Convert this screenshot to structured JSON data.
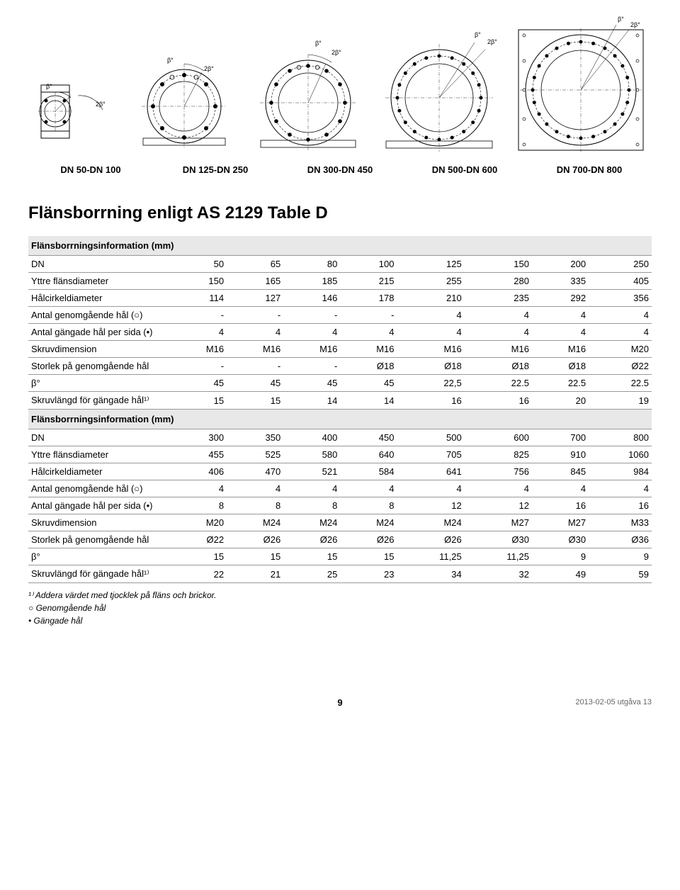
{
  "angle_beta": "β°",
  "angle_alpha": "2β°",
  "diagram_labels": [
    "DN 50-DN 100",
    "DN 125-DN 250",
    "DN 300-DN 450",
    "DN 500-DN 600",
    "DN 700-DN 800"
  ],
  "title": "Flänsborrning enligt AS 2129 Table D",
  "section_header": "Flänsborrningsinformation (mm)",
  "table1": {
    "rows": [
      [
        "DN",
        "50",
        "65",
        "80",
        "100",
        "125",
        "150",
        "200",
        "250"
      ],
      [
        "Yttre flänsdiameter",
        "150",
        "165",
        "185",
        "215",
        "255",
        "280",
        "335",
        "405"
      ],
      [
        "Hålcirkeldiameter",
        "114",
        "127",
        "146",
        "178",
        "210",
        "235",
        "292",
        "356"
      ],
      [
        "Antal genomgående hål (○)",
        "-",
        "-",
        "-",
        "-",
        "4",
        "4",
        "4",
        "4"
      ],
      [
        "Antal gängade hål per sida (•)",
        "4",
        "4",
        "4",
        "4",
        "4",
        "4",
        "4",
        "4"
      ],
      [
        "Skruvdimension",
        "M16",
        "M16",
        "M16",
        "M16",
        "M16",
        "M16",
        "M16",
        "M20"
      ],
      [
        "Storlek på genomgående hål",
        "-",
        "-",
        "-",
        "Ø18",
        "Ø18",
        "Ø18",
        "Ø18",
        "Ø22"
      ],
      [
        "β°",
        "45",
        "45",
        "45",
        "45",
        "22,5",
        "22.5",
        "22.5",
        "22.5"
      ],
      [
        "Skruvlängd för gängade hål¹⁾",
        "15",
        "15",
        "14",
        "14",
        "16",
        "16",
        "20",
        "19"
      ]
    ]
  },
  "table2": {
    "rows": [
      [
        "DN",
        "300",
        "350",
        "400",
        "450",
        "500",
        "600",
        "700",
        "800"
      ],
      [
        "Yttre flänsdiameter",
        "455",
        "525",
        "580",
        "640",
        "705",
        "825",
        "910",
        "1060"
      ],
      [
        "Hålcirkeldiameter",
        "406",
        "470",
        "521",
        "584",
        "641",
        "756",
        "845",
        "984"
      ],
      [
        "Antal genomgående hål (○)",
        "4",
        "4",
        "4",
        "4",
        "4",
        "4",
        "4",
        "4"
      ],
      [
        "Antal gängade hål per sida (•)",
        "8",
        "8",
        "8",
        "8",
        "12",
        "12",
        "16",
        "16"
      ],
      [
        "Skruvdimension",
        "M20",
        "M24",
        "M24",
        "M24",
        "M24",
        "M27",
        "M27",
        "M33"
      ],
      [
        "Storlek på genomgående hål",
        "Ø22",
        "Ø26",
        "Ø26",
        "Ø26",
        "Ø26",
        "Ø30",
        "Ø30",
        "Ø36"
      ],
      [
        "β°",
        "15",
        "15",
        "15",
        "15",
        "11,25",
        "11,25",
        "9",
        "9"
      ],
      [
        "Skruvlängd för gängade hål¹⁾",
        "22",
        "21",
        "25",
        "23",
        "34",
        "32",
        "49",
        "59"
      ]
    ]
  },
  "footnotes": [
    "¹⁾ Addera värdet med tjocklek på fläns och brickor.",
    "○ Genomgående hål",
    "• Gängade hål"
  ],
  "footer": {
    "page": "9",
    "right": "2013-02-05 utgåva 13"
  }
}
